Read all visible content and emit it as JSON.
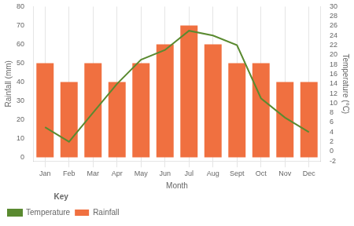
{
  "chart_data": {
    "type": "bar",
    "categories": [
      "Jan",
      "Feb",
      "Mar",
      "Apr",
      "May",
      "Jun",
      "Jul",
      "Aug",
      "Sept",
      "Oct",
      "Nov",
      "Dec"
    ],
    "series": [
      {
        "name": "Rainfall",
        "type": "bar",
        "color": "#F07040",
        "values": [
          50,
          40,
          50,
          40,
          50,
          60,
          70,
          60,
          50,
          50,
          40,
          40
        ]
      },
      {
        "name": "Temperature",
        "type": "line",
        "color": "#5A8A30",
        "axis": "y2",
        "marker": "none",
        "values": [
          5,
          2,
          8,
          14,
          19,
          21,
          25,
          24,
          22,
          11,
          7,
          4
        ]
      }
    ],
    "xlabel": "Month",
    "ylabel": "Rainfall (mm)",
    "y2label": "Temperature (°C)",
    "ylim": [
      -2,
      80
    ],
    "yticks": [
      0,
      10,
      20,
      30,
      40,
      50,
      60,
      70,
      80
    ],
    "y2lim": [
      -2,
      30
    ],
    "y2ticks": [
      -2,
      0,
      2,
      4,
      6,
      8,
      10,
      12,
      14,
      16,
      18,
      20,
      22,
      24,
      26,
      28,
      30
    ],
    "grid": "x",
    "legend": "bottom",
    "legend_title": "Key"
  }
}
